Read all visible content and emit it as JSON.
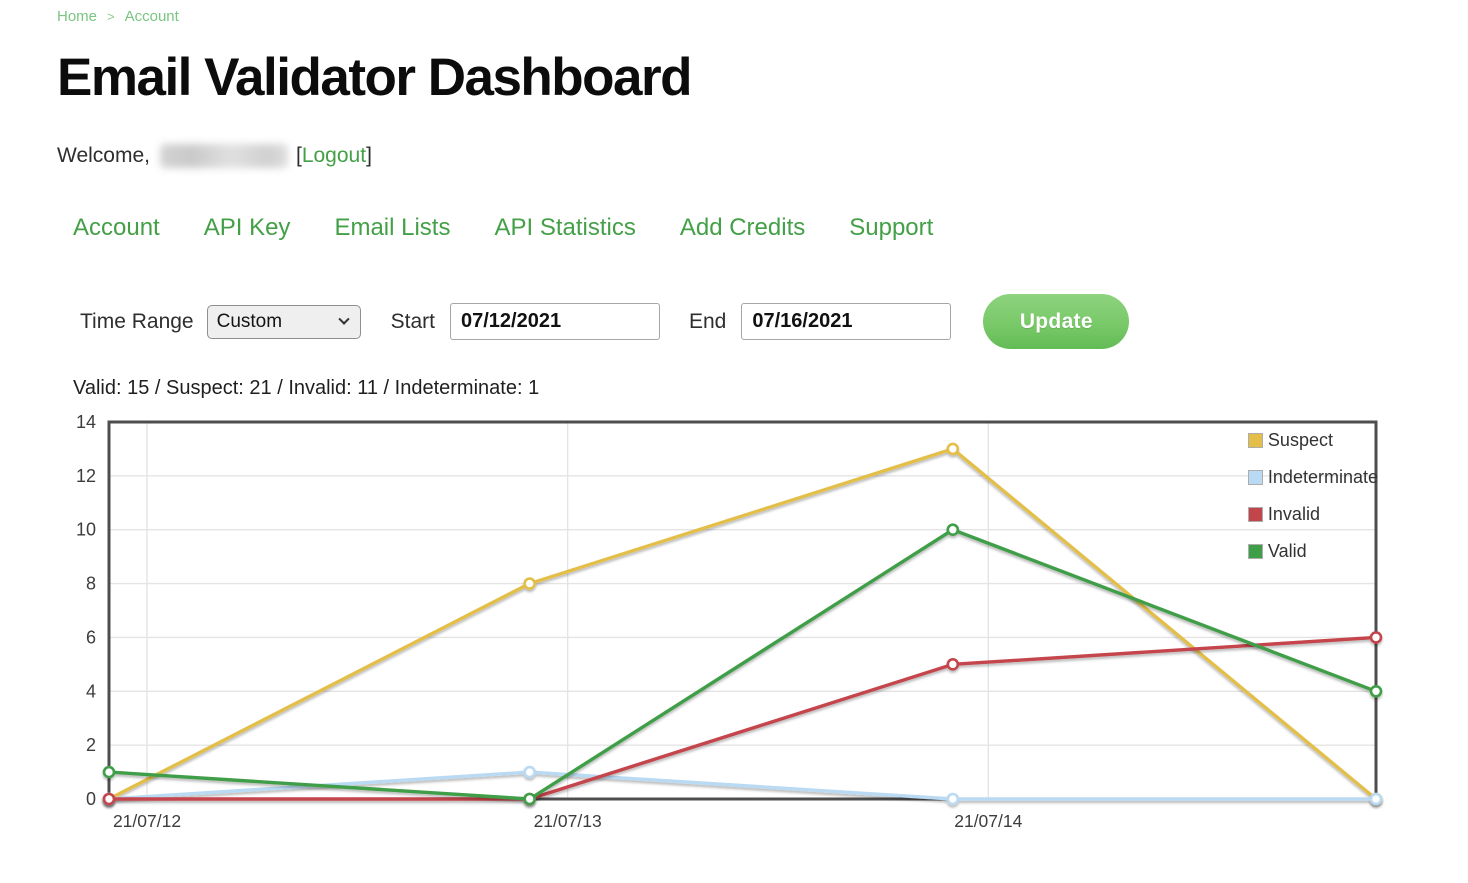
{
  "breadcrumb": {
    "home": "Home",
    "separator": ">",
    "account": "Account"
  },
  "page": {
    "title": "Email Validator Dashboard"
  },
  "welcome": {
    "prefix": "Welcome,",
    "bracket_open": "[",
    "logout_label": "Logout",
    "bracket_close": "]"
  },
  "nav": {
    "items": [
      "Account",
      "API Key",
      "Email Lists",
      "API Statistics",
      "Add Credits",
      "Support"
    ]
  },
  "controls": {
    "time_range_label": "Time Range",
    "time_range_value": "Custom",
    "start_label": "Start",
    "start_value": "07/12/2021",
    "end_label": "End",
    "end_value": "07/16/2021",
    "update_label": "Update"
  },
  "summary": {
    "text": "Valid: 15 / Suspect: 21 / Invalid: 11 / Indeterminate: 1"
  },
  "chart_data": {
    "type": "line",
    "x_tick_labels": [
      "21/07/12",
      "21/07/13",
      "21/07/14"
    ],
    "x_points": 4,
    "series": [
      {
        "name": "Suspect",
        "color": "#e3bf4a",
        "values": [
          0,
          8,
          13,
          0
        ]
      },
      {
        "name": "Indeterminate",
        "color": "#b9daf2",
        "values": [
          0,
          1,
          0,
          0
        ]
      },
      {
        "name": "Invalid",
        "color": "#c4444b",
        "values": [
          0,
          0,
          5,
          6
        ]
      },
      {
        "name": "Valid",
        "color": "#3f9e48",
        "values": [
          1,
          0,
          10,
          4
        ]
      }
    ],
    "totals": {
      "Valid": 15,
      "Suspect": 21,
      "Invalid": 11,
      "Indeterminate": 1
    },
    "ylim": [
      0,
      14
    ],
    "y_ticks": [
      0,
      2,
      4,
      6,
      8,
      10,
      12,
      14
    ],
    "grid": true,
    "legend_position": "top-right",
    "markers": "open-circle"
  },
  "colors": {
    "link_green": "#43a047",
    "breadcrumb_green": "#79c581",
    "button_green": "#79c969",
    "plot_border": "#4e4e4e",
    "gridline": "#e4e4e4"
  }
}
